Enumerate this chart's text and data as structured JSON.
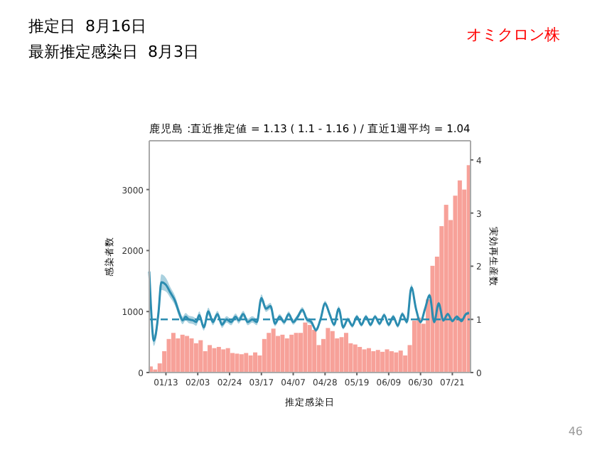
{
  "chart_data": {
    "type": "bar",
    "title": "鹿児島 :直近推定値 = 1.13 ( 1.1 - 1.16 ) / 直近1週平均 = 1.04",
    "xlabel": "推定感染日",
    "ylabel": "感染者数",
    "y2label": "実効再生産数",
    "annotations": [
      "推定日  8月16日",
      "最新推定感染日  8月3日",
      "オミクロン株",
      "46"
    ],
    "xlim": [
      "--01-02",
      "--08-02"
    ],
    "xticks": [
      {
        "value": "--01-13",
        "label": "01/13"
      },
      {
        "value": "--02-03",
        "label": "02/03"
      },
      {
        "value": "--02-24",
        "label": "02/24"
      },
      {
        "value": "--03-17",
        "label": "03/17"
      },
      {
        "value": "--04-07",
        "label": "04/07"
      },
      {
        "value": "--04-28",
        "label": "04/28"
      },
      {
        "value": "--05-19",
        "label": "05/19"
      },
      {
        "value": "--06-09",
        "label": "06/09"
      },
      {
        "value": "--06-30",
        "label": "06/30"
      },
      {
        "value": "--07-21",
        "label": "07/21"
      }
    ],
    "ylim": [
      0,
      3800
    ],
    "yticks": [
      0,
      1000,
      2000,
      3000
    ],
    "y2lim": [
      0,
      4.36
    ],
    "y2ticks": [
      0,
      1,
      2,
      3,
      4
    ],
    "grid": false,
    "ref_lines": [
      {
        "axis": "y2",
        "value": 1,
        "color": "#2b8cb0",
        "line_style": "dashed"
      }
    ],
    "series": [
      {
        "color": "#f7a199",
        "x": [
          "--01-03",
          "--01-06",
          "--01-09",
          "--01-12",
          "--01-15",
          "--01-18",
          "--01-21",
          "--01-24",
          "--01-27",
          "--01-30",
          "--02-02",
          "--02-05",
          "--02-08",
          "--02-11",
          "--02-14",
          "--02-17",
          "--02-20",
          "--02-23",
          "--02-26",
          "--03-01",
          "--03-04",
          "--03-07",
          "--03-10",
          "--03-13",
          "--03-16",
          "--03-19",
          "--03-22",
          "--03-25",
          "--03-28",
          "--03-31",
          "--04-03",
          "--04-06",
          "--04-09",
          "--04-12",
          "--04-15",
          "--04-18",
          "--04-21",
          "--04-24",
          "--04-27",
          "--04-30",
          "--05-03",
          "--05-06",
          "--05-09",
          "--05-12",
          "--05-15",
          "--05-18",
          "--05-21",
          "--05-24",
          "--05-27",
          "--05-30",
          "--06-02",
          "--06-05",
          "--06-08",
          "--06-11",
          "--06-14",
          "--06-17",
          "--06-20",
          "--06-23",
          "--06-26",
          "--06-29",
          "--07-02",
          "--07-05",
          "--07-08",
          "--07-11",
          "--07-14",
          "--07-17",
          "--07-20",
          "--07-23",
          "--07-26",
          "--07-29",
          "--08-01"
        ],
        "values": [
          100,
          50,
          150,
          350,
          550,
          650,
          560,
          620,
          600,
          560,
          480,
          530,
          350,
          450,
          400,
          420,
          380,
          400,
          320,
          310,
          300,
          320,
          280,
          330,
          280,
          550,
          650,
          720,
          600,
          620,
          560,
          620,
          650,
          650,
          820,
          780,
          700,
          450,
          550,
          730,
          680,
          560,
          580,
          650,
          480,
          460,
          420,
          380,
          400,
          350,
          370,
          340,
          380,
          350,
          330,
          360,
          280,
          450,
          850,
          900,
          800,
          1200,
          1750,
          1900,
          2400,
          2750,
          2500,
          2900,
          3150,
          3000,
          3400
        ]
      },
      {
        "type": "line",
        "axis": "y2",
        "color": "#2b8cb0",
        "x": [
          "--01-02",
          "--01-03",
          "--01-05",
          "--01-08",
          "--01-10",
          "--01-13",
          "--01-16",
          "--01-19",
          "--01-22",
          "--01-24",
          "--01-26",
          "--01-28",
          "--01-31",
          "--02-02",
          "--02-04",
          "--02-07",
          "--02-10",
          "--02-13",
          "--02-16",
          "--02-19",
          "--02-22",
          "--02-25",
          "--02-28",
          "--03-02",
          "--03-05",
          "--03-08",
          "--03-11",
          "--03-14",
          "--03-17",
          "--03-20",
          "--03-23",
          "--03-26",
          "--03-29",
          "--04-01",
          "--04-04",
          "--04-07",
          "--04-10",
          "--04-13",
          "--04-16",
          "--04-19",
          "--04-22",
          "--04-25",
          "--04-28",
          "--05-01",
          "--05-04",
          "--05-07",
          "--05-10",
          "--05-13",
          "--05-16",
          "--05-19",
          "--05-22",
          "--05-25",
          "--05-28",
          "--05-31",
          "--06-03",
          "--06-06",
          "--06-09",
          "--06-12",
          "--06-15",
          "--06-18",
          "--06-21",
          "--06-24",
          "--06-27",
          "--06-30",
          "--07-03",
          "--07-06",
          "--07-09",
          "--07-12",
          "--07-15",
          "--07-18",
          "--07-21",
          "--07-24",
          "--07-27",
          "--07-30",
          "--08-01"
        ],
        "values": [
          1.9,
          1.3,
          0.6,
          1.1,
          1.7,
          1.65,
          1.5,
          1.35,
          1.1,
          0.98,
          1.05,
          1.0,
          0.98,
          0.95,
          1.08,
          0.85,
          1.15,
          0.95,
          1.1,
          0.9,
          1.0,
          0.95,
          1.05,
          0.98,
          1.1,
          0.95,
          1.0,
          0.95,
          1.4,
          1.2,
          1.25,
          0.92,
          1.05,
          0.95,
          1.1,
          0.95,
          1.05,
          1.18,
          1.0,
          0.95,
          0.8,
          1.0,
          1.3,
          1.1,
          0.9,
          1.2,
          0.85,
          1.0,
          0.88,
          1.05,
          0.9,
          1.05,
          0.9,
          1.05,
          0.92,
          1.08,
          0.9,
          1.05,
          0.88,
          1.1,
          0.95,
          1.6,
          1.2,
          0.95,
          1.2,
          1.45,
          0.95,
          1.3,
          0.98,
          1.1,
          0.97,
          1.05,
          0.97,
          1.1,
          1.12
        ],
        "lower": [
          1.6,
          1.1,
          0.5,
          0.95,
          1.55,
          1.52,
          1.4,
          1.26,
          1.02,
          0.91,
          0.98,
          0.93,
          0.91,
          0.88,
          1.01,
          0.79,
          1.08,
          0.89,
          1.04,
          0.84,
          0.94,
          0.89,
          0.99,
          0.92,
          1.04,
          0.89,
          0.94,
          0.89,
          1.33,
          1.14,
          1.19,
          0.87,
          1.0,
          0.9,
          1.05,
          0.9,
          1.0,
          1.13,
          0.95,
          0.9,
          0.76,
          0.95,
          1.25,
          1.05,
          0.86,
          1.15,
          0.81,
          0.96,
          0.84,
          1.01,
          0.86,
          1.01,
          0.86,
          1.01,
          0.88,
          1.04,
          0.86,
          1.01,
          0.84,
          1.06,
          0.91,
          1.54,
          1.16,
          0.92,
          1.16,
          1.41,
          0.92,
          1.27,
          0.95,
          1.07,
          0.94,
          1.02,
          0.94,
          1.07,
          1.09
        ],
        "upper": [
          2.2,
          1.5,
          0.7,
          1.25,
          1.85,
          1.78,
          1.6,
          1.44,
          1.18,
          1.05,
          1.12,
          1.07,
          1.05,
          1.02,
          1.15,
          0.91,
          1.22,
          1.01,
          1.16,
          0.96,
          1.06,
          1.01,
          1.11,
          1.04,
          1.16,
          1.01,
          1.06,
          1.01,
          1.47,
          1.26,
          1.31,
          0.97,
          1.1,
          1.0,
          1.15,
          1.0,
          1.1,
          1.23,
          1.05,
          1.0,
          0.84,
          1.05,
          1.35,
          1.15,
          0.94,
          1.25,
          0.89,
          1.04,
          0.92,
          1.09,
          0.94,
          1.09,
          0.94,
          1.09,
          0.96,
          1.12,
          0.94,
          1.09,
          0.92,
          1.14,
          0.99,
          1.66,
          1.24,
          0.98,
          1.24,
          1.49,
          0.98,
          1.33,
          1.01,
          1.13,
          1.0,
          1.08,
          1.0,
          1.13,
          1.15
        ]
      }
    ]
  }
}
